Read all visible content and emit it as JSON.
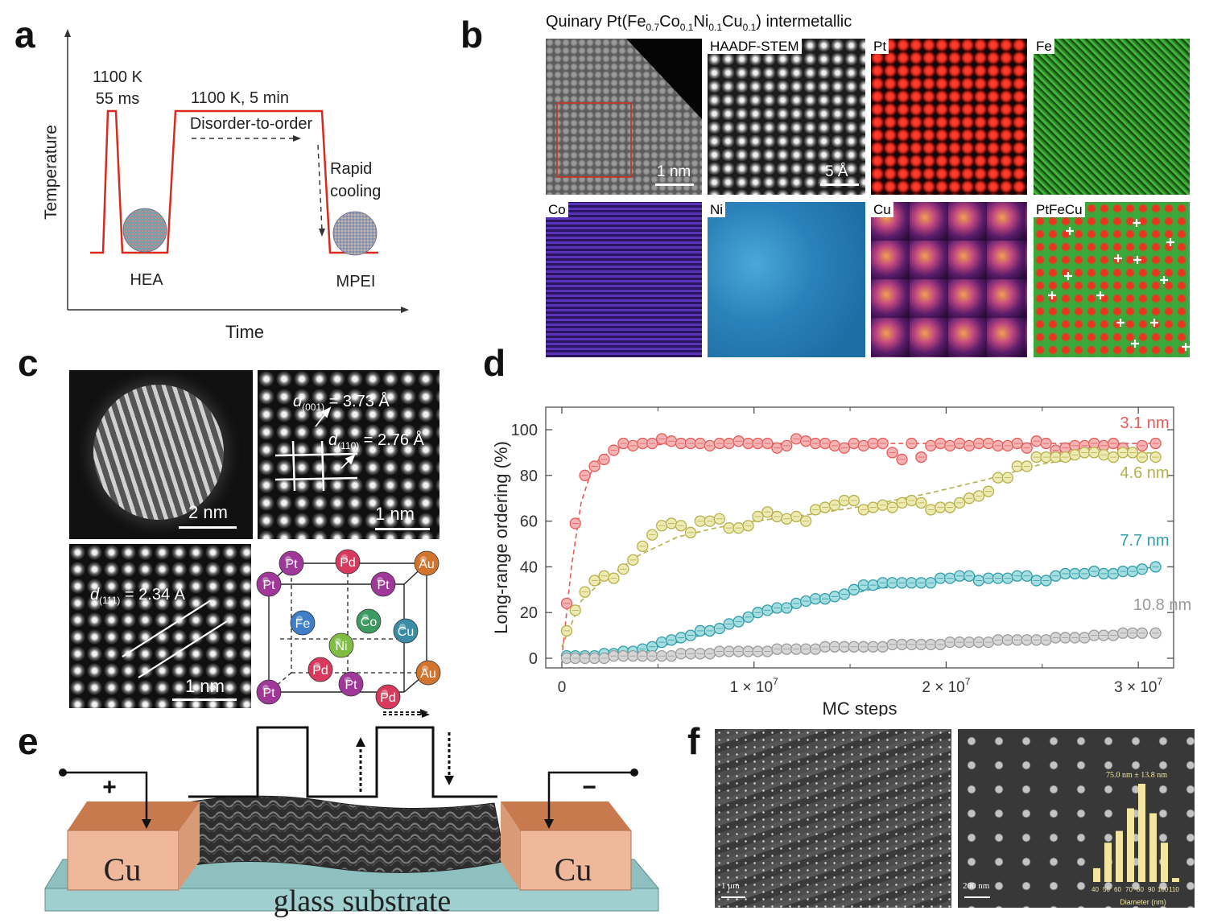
{
  "panels": {
    "a": {
      "label": "a",
      "pulse_text": [
        "1100 K",
        "55 ms"
      ],
      "hold_text": "1100 K, 5 min",
      "process_text": "Disorder-to-order",
      "cooling_text": [
        "Rapid",
        "cooling"
      ],
      "left_particle": "HEA",
      "right_particle": "MPEI",
      "ylabel": "Temperature",
      "xlabel": "Time",
      "line_color": "#d62a1e"
    },
    "b": {
      "label": "b",
      "title_parts": [
        "Quinary Pt(Fe",
        "0.7",
        "Co",
        "0.1",
        "Ni",
        "0.1",
        "Cu",
        "0.1",
        ") intermetallic"
      ],
      "tiles": [
        "HAADF-STEM",
        "Pt",
        "Fe",
        "Co",
        "Ni",
        "Cu",
        "PtFeCu"
      ],
      "scalebars": [
        "1 nm",
        "5 Å"
      ]
    },
    "c": {
      "label": "c",
      "scalebars": [
        "2 nm",
        "1 nm",
        "1 nm"
      ],
      "d001": {
        "sym": "d",
        "sub": "(001)",
        "val": " = 3.73 Å"
      },
      "d110": {
        "sym": "d",
        "sub": "(110)",
        "val": " = 2.76 Å"
      },
      "d111": {
        "sym": "d",
        "sub": "(111)",
        "val": " = 2.34 Å"
      },
      "atoms": [
        {
          "el": "Pt",
          "color": "#a0389a"
        },
        {
          "el": "Pd",
          "color": "#d83a5e"
        },
        {
          "el": "Au",
          "color": "#d2742e"
        },
        {
          "el": "Pt",
          "color": "#a0389a"
        },
        {
          "el": "Pt",
          "color": "#a0389a"
        },
        {
          "el": "Fe",
          "color": "#3e7fc7"
        },
        {
          "el": "Co",
          "color": "#3d9a62"
        },
        {
          "el": "Ni",
          "color": "#7fbd43"
        },
        {
          "el": "Cu",
          "color": "#3c8ca6"
        },
        {
          "el": "Pd",
          "color": "#d83a5e"
        },
        {
          "el": "Au",
          "color": "#d2742e"
        },
        {
          "el": "Pt",
          "color": "#a0389a"
        },
        {
          "el": "Pt",
          "color": "#a0389a"
        },
        {
          "el": "Pd",
          "color": "#d83a5e"
        }
      ]
    },
    "d": {
      "label": "d"
    },
    "e": {
      "label": "e",
      "left_electrode": "Cu",
      "right_electrode": "Cu",
      "substrate": "glass substrate",
      "plus": "+",
      "minus": "−"
    },
    "f": {
      "label": "f",
      "scalebars": [
        "1 μm",
        "200 nm"
      ],
      "hist_label": "75.0 nm ± 13.8 nm",
      "hist_xlabel": "Diameter (nm)",
      "hist_ticks": [
        "40",
        "50",
        "60",
        "70",
        "80",
        "90",
        "100",
        "110"
      ]
    }
  },
  "chart_data": {
    "type": "scatter",
    "xlabel": "MC steps",
    "ylabel": "Long-range ordering (%)",
    "xlim": [
      0,
      31000000
    ],
    "ylim": [
      0,
      100
    ],
    "xticks": [
      {
        "value": 0,
        "label": "0",
        "sup": ""
      },
      {
        "value": 10000000,
        "label": "1 × 10",
        "sup": "7"
      },
      {
        "value": 20000000,
        "label": "2 × 10",
        "sup": "7"
      },
      {
        "value": 30000000,
        "label": "3 × 10",
        "sup": "7"
      }
    ],
    "yticks": [
      0,
      20,
      40,
      60,
      80,
      100
    ],
    "series": [
      {
        "name": "3.1 nm",
        "color": "#e85a5a",
        "fill": "#f4b4b4",
        "x": [
          250000,
          700000,
          1200000,
          1700000,
          2200000,
          2700000,
          3200000,
          3700000,
          4200000,
          4700000,
          5200000,
          5700000,
          6200000,
          6700000,
          7200000,
          7700000,
          8200000,
          8700000,
          9200000,
          9700000,
          10200000,
          10700000,
          11200000,
          11700000,
          12200000,
          12700000,
          13200000,
          13700000,
          14200000,
          14700000,
          15200000,
          15700000,
          16200000,
          16700000,
          17200000,
          17700000,
          18200000,
          18700000,
          19200000,
          19700000,
          20200000,
          20700000,
          21200000,
          21700000,
          22200000,
          22700000,
          23200000,
          23700000,
          24200000,
          24700000,
          25200000,
          25700000,
          26200000,
          26700000,
          27200000,
          27700000,
          28200000,
          28700000,
          29200000,
          29700000,
          30200000,
          30900000
        ],
        "y": [
          24,
          59,
          80,
          84,
          87,
          91,
          94,
          93,
          94,
          94,
          96,
          95,
          94,
          94,
          94,
          93,
          94,
          94,
          95,
          94,
          94,
          94,
          92,
          93,
          96,
          95,
          94,
          94,
          93,
          92,
          94,
          93,
          94,
          94,
          90,
          87,
          94,
          88,
          93,
          94,
          93,
          94,
          93,
          94,
          94,
          93,
          93,
          94,
          92,
          95,
          94,
          91,
          92,
          93,
          93,
          94,
          93,
          94,
          92,
          90,
          93,
          94
        ]
      },
      {
        "name": "4.6 nm",
        "color": "#b6b04a",
        "fill": "#eeeab4",
        "x": [
          250000,
          700000,
          1200000,
          1700000,
          2200000,
          2700000,
          3200000,
          3700000,
          4200000,
          4700000,
          5200000,
          5700000,
          6200000,
          6700000,
          7200000,
          7700000,
          8200000,
          8700000,
          9200000,
          9700000,
          10200000,
          10700000,
          11200000,
          11700000,
          12200000,
          12700000,
          13200000,
          13700000,
          14200000,
          14700000,
          15200000,
          15700000,
          16200000,
          16700000,
          17200000,
          17700000,
          18200000,
          18700000,
          19200000,
          19700000,
          20200000,
          20700000,
          21200000,
          21700000,
          22200000,
          22700000,
          23200000,
          23700000,
          24200000,
          24700000,
          25200000,
          25700000,
          26200000,
          26700000,
          27200000,
          27700000,
          28200000,
          28700000,
          29200000,
          29700000,
          30200000,
          30900000
        ],
        "y": [
          12,
          21,
          29,
          34,
          36,
          35,
          39,
          43,
          49,
          54,
          58,
          59,
          58,
          55,
          60,
          60,
          61,
          57,
          57,
          58,
          62,
          64,
          62,
          61,
          62,
          60,
          65,
          66,
          67,
          69,
          69,
          65,
          66,
          67,
          66,
          68,
          69,
          68,
          65,
          66,
          66,
          68,
          70,
          71,
          73,
          79,
          79,
          84,
          84,
          88,
          88,
          88,
          88,
          89,
          90,
          90,
          89,
          88,
          90,
          90,
          88,
          88
        ]
      },
      {
        "name": "7.7 nm",
        "color": "#2f9ea8",
        "fill": "#a6dde0",
        "x": [
          250000,
          700000,
          1200000,
          1700000,
          2200000,
          2700000,
          3200000,
          3700000,
          4200000,
          4700000,
          5200000,
          5700000,
          6200000,
          6700000,
          7200000,
          7700000,
          8200000,
          8700000,
          9200000,
          9700000,
          10200000,
          10700000,
          11200000,
          11700000,
          12200000,
          12700000,
          13200000,
          13700000,
          14200000,
          14700000,
          15200000,
          15700000,
          16200000,
          16700000,
          17200000,
          17700000,
          18200000,
          18700000,
          19200000,
          19700000,
          20200000,
          20700000,
          21200000,
          21700000,
          22200000,
          22700000,
          23200000,
          23700000,
          24200000,
          24700000,
          25200000,
          25700000,
          26200000,
          26700000,
          27200000,
          27700000,
          28200000,
          28700000,
          29200000,
          29700000,
          30200000,
          30900000
        ],
        "y": [
          1,
          1,
          1,
          1,
          2,
          2,
          3,
          3,
          4,
          5,
          7,
          8,
          9,
          10,
          12,
          12,
          13,
          15,
          16,
          18,
          20,
          21,
          22,
          22,
          24,
          25,
          26,
          26,
          27,
          28,
          30,
          32,
          32,
          33,
          33,
          33,
          33,
          33,
          33,
          35,
          35,
          36,
          36,
          34,
          35,
          35,
          35,
          36,
          36,
          34,
          34,
          36,
          37,
          37,
          37,
          38,
          37,
          37,
          38,
          38,
          39,
          40
        ]
      },
      {
        "name": "10.8 nm",
        "color": "#9a9a9a",
        "fill": "#d6d6d6",
        "x": [
          250000,
          700000,
          1200000,
          1700000,
          2200000,
          2700000,
          3200000,
          3700000,
          4200000,
          4700000,
          5200000,
          5700000,
          6200000,
          6700000,
          7200000,
          7700000,
          8200000,
          8700000,
          9200000,
          9700000,
          10200000,
          10700000,
          11200000,
          11700000,
          12200000,
          12700000,
          13200000,
          13700000,
          14200000,
          14700000,
          15200000,
          15700000,
          16200000,
          16700000,
          17200000,
          17700000,
          18200000,
          18700000,
          19200000,
          19700000,
          20200000,
          20700000,
          21200000,
          21700000,
          22200000,
          22700000,
          23200000,
          23700000,
          24200000,
          24700000,
          25200000,
          25700000,
          26200000,
          26700000,
          27200000,
          27700000,
          28200000,
          28700000,
          29200000,
          29700000,
          30200000,
          30900000
        ],
        "y": [
          0,
          0,
          0,
          0,
          0,
          1,
          1,
          1,
          1,
          1,
          1,
          1,
          2,
          2,
          2,
          2,
          3,
          3,
          3,
          3,
          3,
          3,
          4,
          4,
          4,
          4,
          4,
          5,
          5,
          5,
          5,
          5,
          5,
          5,
          6,
          6,
          6,
          6,
          6,
          6,
          7,
          7,
          7,
          7,
          7,
          8,
          8,
          8,
          8,
          8,
          8,
          9,
          9,
          9,
          9,
          10,
          10,
          10,
          11,
          11,
          11,
          11
        ]
      }
    ],
    "series_fits": [
      {
        "x": [
          0,
          500000,
          1000000,
          1500000,
          2000000,
          3000000,
          4000000,
          6000000,
          31000000
        ],
        "y": [
          0,
          40,
          68,
          81,
          88,
          92,
          93,
          94,
          94
        ]
      },
      {
        "x": [
          0,
          1000000,
          2000000,
          4000000,
          6000000,
          8000000,
          10000000,
          13000000,
          16000000,
          19000000,
          22000000,
          25000000,
          28000000,
          31000000
        ],
        "y": [
          5,
          25,
          33,
          45,
          53,
          57,
          60,
          63,
          67,
          72,
          78,
          85,
          89,
          90
        ]
      },
      {
        "x": [
          0,
          2000000,
          4000000,
          6000000,
          8000000,
          10000000,
          12000000,
          14000000,
          16000000,
          18000000,
          20000000,
          22000000,
          24000000,
          26000000,
          28000000,
          31000000
        ],
        "y": [
          0,
          1,
          3,
          7,
          12,
          18,
          22,
          26,
          30,
          32,
          34,
          35,
          35,
          36,
          37,
          40
        ]
      },
      {
        "x": [
          0,
          5000000,
          10000000,
          15000000,
          20000000,
          25000000,
          31000000
        ],
        "y": [
          0,
          1,
          3,
          5,
          7,
          9,
          11
        ]
      }
    ]
  }
}
